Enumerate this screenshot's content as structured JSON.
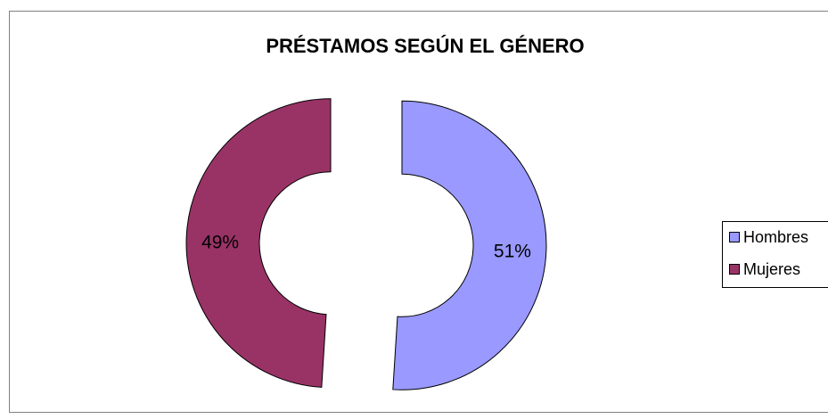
{
  "chart_data": {
    "type": "donut",
    "title": "PRÉSTAMOS SEGÚN EL GÉNERO",
    "categories": [
      "Hombres",
      "Mujeres"
    ],
    "values": [
      51,
      49
    ],
    "value_labels": [
      "51%",
      "49%"
    ],
    "colors": [
      "#9999ff",
      "#993366"
    ],
    "legend": "right"
  }
}
